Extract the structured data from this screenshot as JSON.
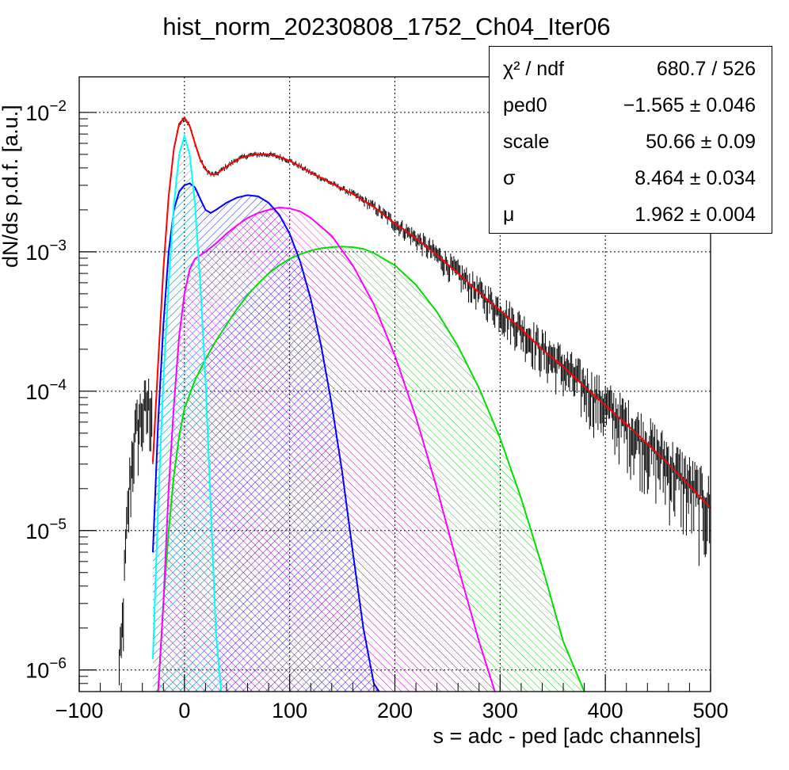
{
  "chart_data": {
    "type": "line",
    "title": "hist_norm_20230808_1752_Ch04_Iter06",
    "xlabel": "s = adc - ped [adc channels]",
    "ylabel": "dN/ds p.d.f. [a.u.]",
    "xlim": [
      -100,
      500
    ],
    "ylim": [
      7e-07,
      0.018
    ],
    "yscale": "log",
    "grid": true,
    "x_ticks": [
      {
        "value": -100,
        "label": "−100"
      },
      {
        "value": 0,
        "label": "0"
      },
      {
        "value": 100,
        "label": "100"
      },
      {
        "value": 200,
        "label": "200"
      },
      {
        "value": 300,
        "label": "300"
      },
      {
        "value": 400,
        "label": "400"
      },
      {
        "value": 500,
        "label": "500"
      }
    ],
    "y_ticks": [
      {
        "value": 0.01,
        "base": "10",
        "exp": "−2"
      },
      {
        "value": 0.001,
        "base": "10",
        "exp": "−3"
      },
      {
        "value": 0.0001,
        "base": "10",
        "exp": "−4"
      },
      {
        "value": 1e-05,
        "base": "10",
        "exp": "−5"
      },
      {
        "value": 1e-06,
        "base": "10",
        "exp": "−6"
      }
    ],
    "histogram": {
      "color": "#000000",
      "points": [
        [
          -62,
          1e-06
        ],
        [
          -60,
          1.5e-06
        ],
        [
          -58,
          3e-06
        ],
        [
          -56,
          7e-06
        ],
        [
          -54,
          1.3e-05
        ],
        [
          -52,
          2.2e-05
        ],
        [
          -50,
          3.2e-05
        ],
        [
          -48,
          4.5e-05
        ],
        [
          -46,
          5.2e-05
        ],
        [
          -44,
          6e-05
        ],
        [
          -42,
          6.5e-05
        ],
        [
          -40,
          7e-05
        ],
        [
          -38,
          7.4e-05
        ],
        [
          -36,
          7.8e-05
        ],
        [
          -34,
          8e-05
        ],
        [
          -32,
          8.3e-05
        ],
        [
          -30,
          8.6e-05
        ]
      ]
    },
    "series": [
      {
        "color": "#ff0000",
        "points": [
          [
            -30,
            3.1e-05
          ],
          [
            -25,
            0.00016
          ],
          [
            -20,
            0.00075
          ],
          [
            -15,
            0.0025
          ],
          [
            -10,
            0.0055
          ],
          [
            -5,
            0.0083
          ],
          [
            0,
            0.0092
          ],
          [
            5,
            0.008
          ],
          [
            10,
            0.006
          ],
          [
            15,
            0.0046
          ],
          [
            20,
            0.0039
          ],
          [
            25,
            0.0036
          ],
          [
            30,
            0.0036
          ],
          [
            40,
            0.0041
          ],
          [
            50,
            0.0046
          ],
          [
            60,
            0.0049
          ],
          [
            70,
            0.005
          ],
          [
            80,
            0.005
          ],
          [
            90,
            0.0048
          ],
          [
            100,
            0.0045
          ],
          [
            110,
            0.0041
          ],
          [
            120,
            0.0037
          ],
          [
            140,
            0.0031
          ],
          [
            160,
            0.0026
          ],
          [
            180,
            0.0021
          ],
          [
            200,
            0.0016
          ],
          [
            220,
            0.00125
          ],
          [
            240,
            0.00095
          ],
          [
            260,
            0.0007
          ],
          [
            280,
            0.00051
          ],
          [
            300,
            0.00038
          ],
          [
            320,
            0.00028
          ],
          [
            340,
            0.0002
          ],
          [
            360,
            0.00015
          ],
          [
            380,
            0.000108
          ],
          [
            400,
            7.9e-05
          ],
          [
            420,
            5.8e-05
          ],
          [
            440,
            4.2e-05
          ],
          [
            460,
            3e-05
          ],
          [
            480,
            2.1e-05
          ],
          [
            500,
            1.45e-05
          ]
        ]
      },
      {
        "color": "#00ffff",
        "fill": true,
        "points": [
          [
            -30,
            1.2e-06
          ],
          [
            -25,
            1.5e-05
          ],
          [
            -20,
            0.00012
          ],
          [
            -15,
            0.0006
          ],
          [
            -10,
            0.0022
          ],
          [
            -5,
            0.005
          ],
          [
            0,
            0.0068
          ],
          [
            5,
            0.005
          ],
          [
            10,
            0.0022
          ],
          [
            15,
            0.0006
          ],
          [
            20,
            0.00012
          ],
          [
            25,
            1.5e-05
          ],
          [
            30,
            1.8e-06
          ],
          [
            35,
            7e-07
          ]
        ]
      },
      {
        "color": "#0000ff",
        "fill": true,
        "points": [
          [
            -30,
            7e-06
          ],
          [
            -25,
            6e-05
          ],
          [
            -20,
            0.0003
          ],
          [
            -15,
            0.001
          ],
          [
            -10,
            0.002
          ],
          [
            -5,
            0.0027
          ],
          [
            0,
            0.003
          ],
          [
            5,
            0.0031
          ],
          [
            10,
            0.0029
          ],
          [
            15,
            0.0024
          ],
          [
            20,
            0.002
          ],
          [
            25,
            0.0019
          ],
          [
            30,
            0.002
          ],
          [
            40,
            0.00225
          ],
          [
            50,
            0.00245
          ],
          [
            60,
            0.00255
          ],
          [
            70,
            0.0025
          ],
          [
            80,
            0.00225
          ],
          [
            90,
            0.00185
          ],
          [
            100,
            0.00135
          ],
          [
            110,
            0.00085
          ],
          [
            120,
            0.00046
          ],
          [
            130,
            0.00021
          ],
          [
            140,
            8e-05
          ],
          [
            150,
            2.6e-05
          ],
          [
            160,
            7e-06
          ],
          [
            170,
            2e-06
          ],
          [
            180,
            8e-07
          ],
          [
            185,
            7e-07
          ]
        ]
      },
      {
        "color": "#ff00ff",
        "fill": true,
        "points": [
          [
            -25,
            7e-07
          ],
          [
            -20,
            3e-06
          ],
          [
            -15,
            2e-05
          ],
          [
            -10,
            8e-05
          ],
          [
            -5,
            0.00025
          ],
          [
            0,
            0.0005
          ],
          [
            5,
            0.00075
          ],
          [
            10,
            0.00089
          ],
          [
            20,
            0.001
          ],
          [
            30,
            0.00115
          ],
          [
            40,
            0.00135
          ],
          [
            50,
            0.00155
          ],
          [
            60,
            0.00175
          ],
          [
            70,
            0.0019
          ],
          [
            80,
            0.002
          ],
          [
            90,
            0.00208
          ],
          [
            100,
            0.00205
          ],
          [
            110,
            0.00195
          ],
          [
            120,
            0.00175
          ],
          [
            140,
            0.0013
          ],
          [
            160,
            0.0008
          ],
          [
            180,
            0.00042
          ],
          [
            200,
            0.00018
          ],
          [
            220,
            6.5e-05
          ],
          [
            240,
            2e-05
          ],
          [
            260,
            5.5e-06
          ],
          [
            280,
            1.6e-06
          ],
          [
            295,
            7e-07
          ]
        ]
      },
      {
        "color": "#00e000",
        "fill": true,
        "points": [
          [
            -25,
            7e-07
          ],
          [
            -20,
            3e-06
          ],
          [
            -15,
            1e-05
          ],
          [
            -10,
            2.5e-05
          ],
          [
            -5,
            4.8e-05
          ],
          [
            0,
            7.5e-05
          ],
          [
            5,
            9.5e-05
          ],
          [
            10,
            0.00012
          ],
          [
            20,
            0.00017
          ],
          [
            30,
            0.00023
          ],
          [
            40,
            0.0003
          ],
          [
            50,
            0.00039
          ],
          [
            60,
            0.00049
          ],
          [
            70,
            0.00059
          ],
          [
            80,
            0.0007
          ],
          [
            90,
            0.0008
          ],
          [
            100,
            0.00089
          ],
          [
            110,
            0.00096
          ],
          [
            120,
            0.00102
          ],
          [
            130,
            0.00106
          ],
          [
            140,
            0.00108
          ],
          [
            150,
            0.00109
          ],
          [
            160,
            0.00108
          ],
          [
            170,
            0.00105
          ],
          [
            180,
            0.00098
          ],
          [
            200,
            0.0008
          ],
          [
            220,
            0.00058
          ],
          [
            240,
            0.00037
          ],
          [
            260,
            0.00021
          ],
          [
            280,
            0.000105
          ],
          [
            300,
            4.6e-05
          ],
          [
            320,
            1.7e-05
          ],
          [
            340,
            5.5e-06
          ],
          [
            360,
            1.6e-06
          ],
          [
            380,
            7e-07
          ]
        ]
      }
    ],
    "stats": [
      {
        "label": "χ² / ndf",
        "value": "680.7 / 526"
      },
      {
        "label": "ped0",
        "value": "−1.565 ± 0.046"
      },
      {
        "label": "scale",
        "value": "50.66 ± 0.09"
      },
      {
        "label": "σ",
        "value": "8.464 ± 0.034"
      },
      {
        "label": "μ",
        "value": "1.962 ± 0.004"
      }
    ]
  }
}
